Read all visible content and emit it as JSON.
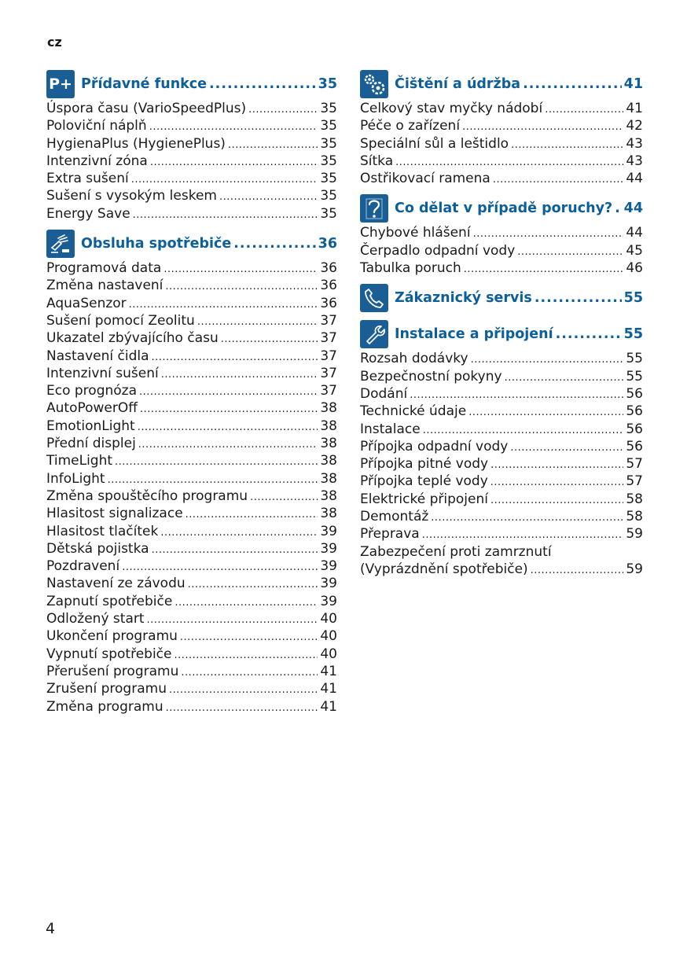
{
  "header": {
    "lang": "cz"
  },
  "footer": {
    "page_number": "4"
  },
  "left_sections": [
    {
      "icon": "plus-features-icon",
      "icon_text": "P+",
      "title": "Přídavné funkce",
      "page": "35",
      "entries": [
        {
          "text": "Úspora času (VarioSpeedPlus)",
          "page": "35"
        },
        {
          "text": "Poloviční náplň",
          "page": "35"
        },
        {
          "text": "HygienaPlus (HygienePlus)",
          "page": "35"
        },
        {
          "text": "Intenzivní zóna",
          "page": "35"
        },
        {
          "text": "Extra sušení",
          "page": "35"
        },
        {
          "text": "Sušení s vysokým leskem",
          "page": "35"
        },
        {
          "text": "Energy Save",
          "page": "35"
        }
      ]
    },
    {
      "icon": "hand-operation-icon",
      "title": "Obsluha spotřebiče",
      "page": "36",
      "entries": [
        {
          "text": "Programová data",
          "page": "36"
        },
        {
          "text": "Změna nastavení",
          "page": "36"
        },
        {
          "text": "AquaSenzor",
          "page": "36"
        },
        {
          "text": "Sušení pomocí Zeolitu",
          "page": "37"
        },
        {
          "text": "Ukazatel zbývajícího času",
          "page": "37"
        },
        {
          "text": "Nastavení čidla",
          "page": "37"
        },
        {
          "text": "Intenzivní sušení",
          "page": "37"
        },
        {
          "text": "Eco prognóza",
          "page": "37"
        },
        {
          "text": "AutoPowerOff",
          "page": "38"
        },
        {
          "text": "EmotionLight",
          "page": "38"
        },
        {
          "text": "Přední displej",
          "page": "38"
        },
        {
          "text": "TimeLight",
          "page": "38"
        },
        {
          "text": "InfoLight",
          "page": "38"
        },
        {
          "text": "Změna spouštěcího programu",
          "page": "38"
        },
        {
          "text": "Hlasitost signalizace",
          "page": "38"
        },
        {
          "text": "Hlasitost tlačítek",
          "page": "39"
        },
        {
          "text": "Dětská pojistka",
          "page": "39"
        },
        {
          "text": "Pozdravení",
          "page": "39"
        },
        {
          "text": "Nastavení ze závodu",
          "page": "39"
        },
        {
          "text": "Zapnutí spotřebiče",
          "page": "39"
        },
        {
          "text": "Odložený start",
          "page": "40"
        },
        {
          "text": "Ukončení programu",
          "page": "40"
        },
        {
          "text": "Vypnutí spotřebiče",
          "page": "40"
        },
        {
          "text": "Přerušení programu",
          "page": "41"
        },
        {
          "text": "Zrušení programu",
          "page": "41"
        },
        {
          "text": "Změna programu",
          "page": "41"
        }
      ]
    }
  ],
  "right_sections": [
    {
      "icon": "gears-cleaning-icon",
      "title": "Čištění a údržba",
      "page": "41",
      "entries": [
        {
          "text": "Celkový stav myčky nádobí",
          "page": "41"
        },
        {
          "text": "Péče o zařízení",
          "page": "42"
        },
        {
          "text": "Speciální sůl a leštidlo",
          "page": "43"
        },
        {
          "text": "Sítka",
          "page": "43"
        },
        {
          "text": "Ostřikovací ramena",
          "page": "44"
        }
      ]
    },
    {
      "icon": "question-mark-icon",
      "title": "Co dělat v případě poruchy?",
      "page": "44",
      "entries": [
        {
          "text": "Chybové hlášení",
          "page": "44"
        },
        {
          "text": "Čerpadlo odpadní vody",
          "page": "45"
        },
        {
          "text": "Tabulka poruch",
          "page": "46"
        }
      ]
    },
    {
      "icon": "phone-icon",
      "title": "Zákaznický servis",
      "page": "55",
      "entries": []
    },
    {
      "icon": "wrench-icon",
      "title": "Instalace a připojení",
      "page": "55",
      "entries": [
        {
          "text": "Rozsah dodávky",
          "page": "55"
        },
        {
          "text": "Bezpečnostní pokyny",
          "page": "55"
        },
        {
          "text": "Dodání",
          "page": "56"
        },
        {
          "text": "Technické údaje",
          "page": "56"
        },
        {
          "text": "Instalace",
          "page": "56"
        },
        {
          "text": "Přípojka odpadní vody",
          "page": "56"
        },
        {
          "text": "Přípojka pitné vody",
          "page": "57"
        },
        {
          "text": "Přípojka teplé vody",
          "page": "57"
        },
        {
          "text": "Elektrické připojení",
          "page": "58"
        },
        {
          "text": "Demontáž",
          "page": "58"
        },
        {
          "text": "Přeprava",
          "page": "59"
        }
      ],
      "wrapped_entry": {
        "line1": "Zabezpečení proti zamrznutí",
        "line2": "(Vyprázdnění spotřebiče)",
        "page": "59"
      }
    }
  ]
}
